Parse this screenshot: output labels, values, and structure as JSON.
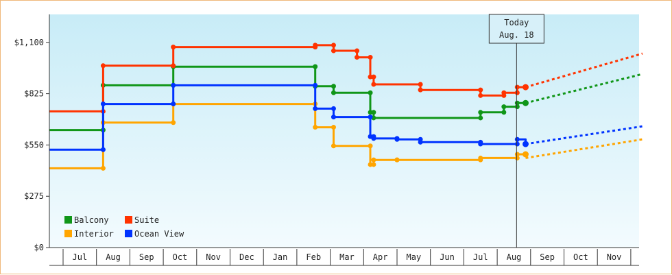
{
  "chart_data": {
    "type": "line",
    "title": "",
    "xlabel": "",
    "ylabel": "",
    "ylim": [
      0,
      1250
    ],
    "y_ticks": [
      {
        "value": 0,
        "label": "$0"
      },
      {
        "value": 275,
        "label": "$275"
      },
      {
        "value": 550,
        "label": "$550"
      },
      {
        "value": 825,
        "label": "$825"
      },
      {
        "value": 1100,
        "label": "$1,100"
      }
    ],
    "x_months": [
      "Jul",
      "Aug",
      "Sep",
      "Oct",
      "Nov",
      "Dec",
      "Jan",
      "Feb",
      "Mar",
      "Apr",
      "May",
      "Jun",
      "Jul",
      "Aug",
      "Sep",
      "Oct",
      "Nov"
    ],
    "x_range": [
      -0.4,
      17.35
    ],
    "today": {
      "line1": "Today",
      "line2": "Aug. 18",
      "x": 13.58
    },
    "grid": false,
    "legend_position": "bottom-left",
    "step": true,
    "series": [
      {
        "name": "Balcony",
        "color": "#109618",
        "values": [
          [
            -0.4,
            630
          ],
          [
            1.2,
            630
          ],
          [
            1.2,
            870
          ],
          [
            3.3,
            870
          ],
          [
            3.3,
            970
          ],
          [
            7.55,
            970
          ],
          [
            7.55,
            865
          ],
          [
            8.1,
            865
          ],
          [
            8.1,
            830
          ],
          [
            9.2,
            830
          ],
          [
            9.2,
            725
          ],
          [
            9.3,
            725
          ],
          [
            9.3,
            695
          ],
          [
            12.5,
            695
          ],
          [
            12.5,
            725
          ],
          [
            13.2,
            725
          ],
          [
            13.2,
            755
          ],
          [
            13.6,
            755
          ],
          [
            13.6,
            775
          ],
          [
            13.85,
            775
          ]
        ],
        "projection": [
          [
            13.85,
            775
          ],
          [
            17.35,
            930
          ]
        ]
      },
      {
        "name": "Suite",
        "color": "#ff3300",
        "values": [
          [
            -0.4,
            730
          ],
          [
            1.2,
            730
          ],
          [
            1.2,
            975
          ],
          [
            3.3,
            975
          ],
          [
            3.3,
            1075
          ],
          [
            7.55,
            1075
          ],
          [
            7.55,
            1085
          ],
          [
            8.1,
            1085
          ],
          [
            8.1,
            1055
          ],
          [
            8.8,
            1055
          ],
          [
            8.8,
            1020
          ],
          [
            9.2,
            1020
          ],
          [
            9.2,
            915
          ],
          [
            9.3,
            915
          ],
          [
            9.3,
            875
          ],
          [
            10.7,
            875
          ],
          [
            10.7,
            845
          ],
          [
            12.5,
            845
          ],
          [
            12.5,
            815
          ],
          [
            13.2,
            815
          ],
          [
            13.2,
            830
          ],
          [
            13.6,
            830
          ],
          [
            13.6,
            860
          ],
          [
            13.85,
            860
          ]
        ],
        "projection": [
          [
            13.85,
            860
          ],
          [
            17.35,
            1040
          ]
        ]
      },
      {
        "name": "Interior",
        "color": "#ffa500",
        "values": [
          [
            -0.4,
            425
          ],
          [
            1.2,
            425
          ],
          [
            1.2,
            670
          ],
          [
            3.3,
            670
          ],
          [
            3.3,
            770
          ],
          [
            7.55,
            770
          ],
          [
            7.55,
            645
          ],
          [
            8.1,
            645
          ],
          [
            8.1,
            545
          ],
          [
            9.2,
            545
          ],
          [
            9.2,
            445
          ],
          [
            9.3,
            445
          ],
          [
            9.3,
            470
          ],
          [
            10.0,
            470
          ],
          [
            10.0,
            470
          ],
          [
            12.5,
            470
          ],
          [
            12.5,
            480
          ],
          [
            13.6,
            480
          ],
          [
            13.6,
            500
          ],
          [
            13.85,
            500
          ]
        ],
        "projection": [
          [
            13.85,
            480
          ],
          [
            17.35,
            580
          ]
        ]
      },
      {
        "name": "Ocean View",
        "color": "#0033ff",
        "values": [
          [
            -0.4,
            525
          ],
          [
            1.2,
            525
          ],
          [
            1.2,
            770
          ],
          [
            3.3,
            770
          ],
          [
            3.3,
            870
          ],
          [
            7.55,
            870
          ],
          [
            7.55,
            745
          ],
          [
            8.1,
            745
          ],
          [
            8.1,
            700
          ],
          [
            9.2,
            700
          ],
          [
            9.2,
            595
          ],
          [
            9.3,
            595
          ],
          [
            9.3,
            585
          ],
          [
            10.0,
            585
          ],
          [
            10.0,
            580
          ],
          [
            10.7,
            580
          ],
          [
            10.7,
            565
          ],
          [
            12.5,
            565
          ],
          [
            12.5,
            555
          ],
          [
            13.6,
            555
          ],
          [
            13.6,
            580
          ],
          [
            13.85,
            580
          ],
          [
            13.85,
            555
          ]
        ],
        "projection": [
          [
            13.85,
            555
          ],
          [
            17.35,
            650
          ]
        ]
      }
    ]
  }
}
